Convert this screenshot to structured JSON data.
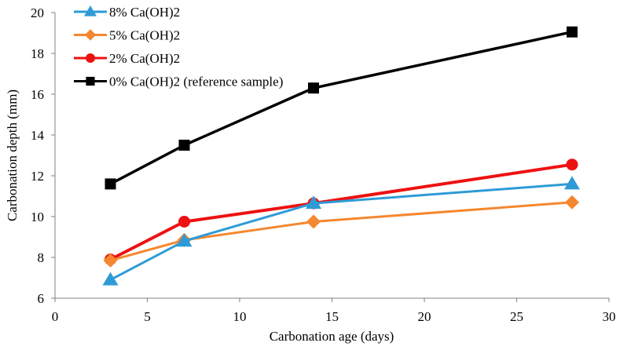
{
  "chart_data": {
    "type": "line",
    "title": "",
    "xlabel": "Carbonation age (days)",
    "ylabel": "Carbonation depth (mm)",
    "xlim": [
      0,
      30
    ],
    "ylim": [
      6,
      20
    ],
    "xticks": [
      0,
      5,
      10,
      15,
      20,
      25,
      30
    ],
    "yticks": [
      6,
      8,
      10,
      12,
      14,
      16,
      18,
      20
    ],
    "grid": false,
    "legend_position": "top-left",
    "x": [
      3,
      7,
      14,
      28
    ],
    "series": [
      {
        "name": "8% Ca(OH)2",
        "color": "#2e9bd6",
        "marker": "triangle",
        "values": [
          6.9,
          8.8,
          10.65,
          11.6
        ]
      },
      {
        "name": "5% Ca(OH)2",
        "color": "#f5872f",
        "marker": "diamond",
        "values": [
          7.85,
          8.85,
          9.75,
          10.7
        ]
      },
      {
        "name": "2% Ca(OH)2",
        "color": "#ee1111",
        "marker": "circle",
        "values": [
          7.9,
          9.75,
          10.65,
          12.55
        ]
      },
      {
        "name": "0% Ca(OH)2 (reference sample)",
        "color": "#000000",
        "marker": "square",
        "values": [
          11.6,
          13.5,
          16.3,
          19.05
        ]
      }
    ]
  }
}
